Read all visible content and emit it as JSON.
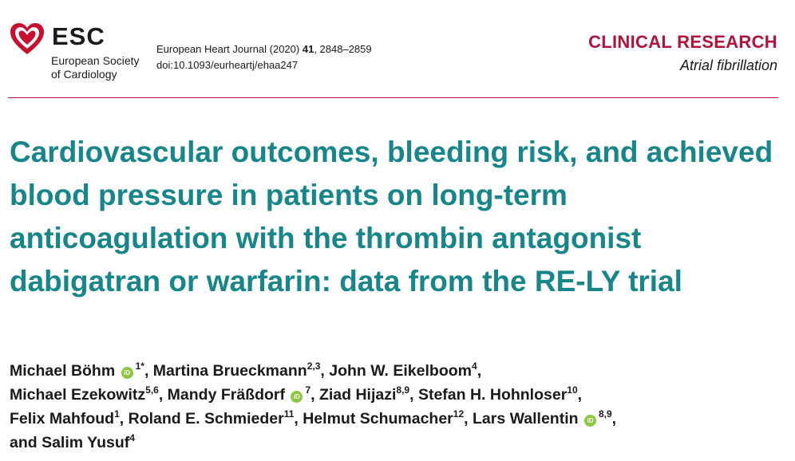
{
  "header": {
    "society_abbr": "ESC",
    "society_name_line1": "European Society",
    "society_name_line2": "of Cardiology",
    "journal_name": "European Heart Journal (2020)",
    "journal_volume": "41",
    "journal_pages": ", 2848–2859",
    "doi": "doi:10.1093/eurheartj/ehaa247",
    "section": "CLINICAL RESEARCH",
    "subsection": "Atrial fibrillation"
  },
  "article": {
    "title": "Cardiovascular outcomes, bleeding risk, and achieved blood pressure in patients on long-term anticoagulation with the thrombin antagonist dabigatran or warfarin: data from the RE-LY trial"
  },
  "authors": [
    {
      "name": "Michael Böhm",
      "orcid": true,
      "aff": "1*",
      "sep": ", "
    },
    {
      "name": "Martina Brueckmann",
      "orcid": false,
      "aff": "2,3",
      "sep": ", "
    },
    {
      "name": "John W. Eikelboom",
      "orcid": false,
      "aff": "4",
      "sep": ", "
    },
    {
      "name": "Michael Ezekowitz",
      "orcid": false,
      "aff": "5,6",
      "sep": ", "
    },
    {
      "name": "Mandy Fräßdorf",
      "orcid": true,
      "aff": "7",
      "sep": ", "
    },
    {
      "name": "Ziad Hijazi",
      "orcid": false,
      "aff": "8,9",
      "sep": ", "
    },
    {
      "name": "Stefan H. Hohnloser",
      "orcid": false,
      "aff": "10",
      "sep": ", "
    },
    {
      "name": "Felix Mahfoud",
      "orcid": false,
      "aff": "1",
      "sep": ", "
    },
    {
      "name": "Roland E. Schmieder",
      "orcid": false,
      "aff": "11",
      "sep": ", "
    },
    {
      "name": "Helmut Schumacher",
      "orcid": false,
      "aff": "12",
      "sep": ", "
    },
    {
      "name": "Lars Wallentin",
      "orcid": true,
      "aff": "8,9",
      "sep": ", "
    },
    {
      "name": "and Salim Yusuf",
      "orcid": false,
      "aff": "4",
      "sep": ""
    }
  ],
  "orcid_label": "iD",
  "colors": {
    "accent_red": "#b3123a",
    "title_teal": "#16868a",
    "orcid_green": "#8dc63f"
  }
}
